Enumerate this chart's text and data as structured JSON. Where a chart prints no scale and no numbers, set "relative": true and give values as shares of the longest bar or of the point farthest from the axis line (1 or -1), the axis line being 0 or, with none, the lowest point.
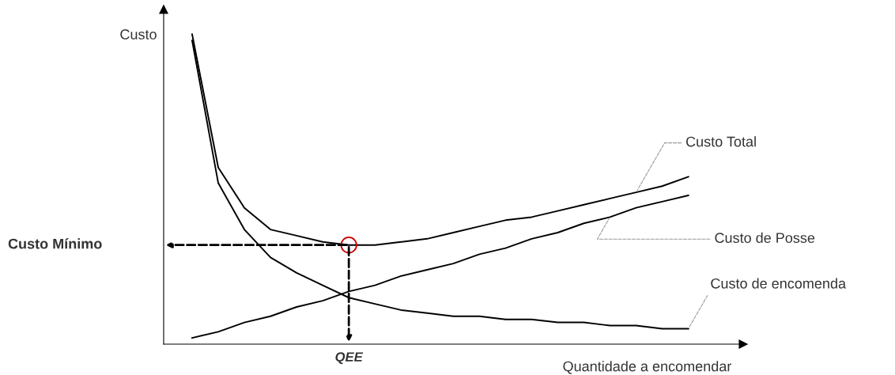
{
  "chart_data": {
    "type": "line",
    "relative": true,
    "xlabel": "Quantidade a encomendar",
    "ylabel": "Custo",
    "categories": [
      null,
      null,
      null,
      null,
      null,
      null,
      null,
      null,
      null,
      null,
      null,
      null,
      null,
      null,
      null,
      null,
      null,
      null,
      null,
      null
    ],
    "series": [
      {
        "name": "Custo Total",
        "color": "#000000",
        "values": [
          1.0,
          0.57,
          0.44,
          0.37,
          0.35,
          0.33,
          0.32,
          0.32,
          0.33,
          0.34,
          0.36,
          0.38,
          0.4,
          0.41,
          0.43,
          0.45,
          0.47,
          0.49,
          0.51,
          0.54
        ]
      },
      {
        "name": "Custo de Posse",
        "color": "#000000",
        "values": [
          0.02,
          0.04,
          0.07,
          0.09,
          0.12,
          0.14,
          0.17,
          0.19,
          0.22,
          0.24,
          0.26,
          0.29,
          0.31,
          0.34,
          0.36,
          0.39,
          0.41,
          0.44,
          0.46,
          0.48
        ]
      },
      {
        "name": "Custo de encomenda",
        "color": "#000000",
        "values": [
          0.98,
          0.52,
          0.37,
          0.28,
          0.23,
          0.19,
          0.15,
          0.13,
          0.11,
          0.1,
          0.09,
          0.09,
          0.08,
          0.08,
          0.07,
          0.07,
          0.06,
          0.06,
          0.05,
          0.05
        ]
      }
    ],
    "annotations": [
      "Custo Mínimo",
      "QEE"
    ],
    "grid": false,
    "legend": false,
    "marker": "none",
    "line_style": "solid"
  }
}
